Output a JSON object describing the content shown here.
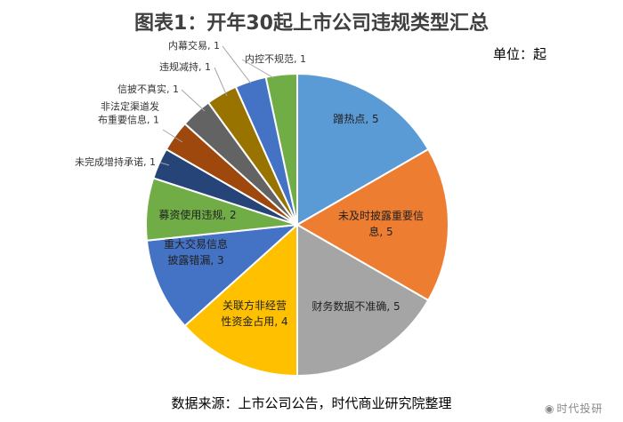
{
  "header": {
    "title": "图表1：开年30起上市公司违规类型汇总",
    "unit": "单位：起"
  },
  "footer": {
    "source": "数据来源：上市公司公告，时代商业研究院整理",
    "watermark": "时代投研"
  },
  "chart_data": {
    "type": "pie",
    "title": "图表1：开年30起上市公司违规类型汇总",
    "unit": "单位：起",
    "slices": [
      {
        "label": "蹭热点",
        "value": 5,
        "color": "#5b9bd5",
        "lines": [
          "蹭热点, 5"
        ]
      },
      {
        "label": "未及时披露重要信息",
        "value": 5,
        "color": "#ed7d31",
        "lines": [
          "未及时披露重要信",
          "息, 5"
        ]
      },
      {
        "label": "财务数据不准确",
        "value": 5,
        "color": "#a5a5a5",
        "lines": [
          "财务数据不准确, 5"
        ]
      },
      {
        "label": "关联方非经营性资金占用",
        "value": 4,
        "color": "#ffc000",
        "lines": [
          "关联方非经营",
          "性资金占用, 4"
        ]
      },
      {
        "label": "重大交易信息披露错漏",
        "value": 3,
        "color": "#4472c4",
        "lines": [
          "重大交易信息",
          "披露错漏, 3"
        ]
      },
      {
        "label": "募资使用违规",
        "value": 2,
        "color": "#70ad47",
        "lines": [
          "募资使用违规, 2"
        ]
      },
      {
        "label": "未完成增持承诺",
        "value": 1,
        "color": "#264478",
        "lines": [
          "未完成增持承诺, 1"
        ]
      },
      {
        "label": "非法定渠道发布重要信息",
        "value": 1,
        "color": "#9e480e",
        "lines": [
          "非法定渠道发",
          "布重要信息, 1"
        ]
      },
      {
        "label": "信披不真实",
        "value": 1,
        "color": "#636363",
        "lines": [
          "信披不真实, 1"
        ]
      },
      {
        "label": "违规减持",
        "value": 1,
        "color": "#997300",
        "lines": [
          "违规减持, 1"
        ]
      },
      {
        "label": "内幕交易",
        "value": 1,
        "color": "#4472c4",
        "lines": [
          "内幕交易, 1"
        ]
      },
      {
        "label": "内控不规范",
        "value": 1,
        "color": "#70ad47",
        "lines": [
          "内控不规范, 1"
        ]
      }
    ]
  }
}
